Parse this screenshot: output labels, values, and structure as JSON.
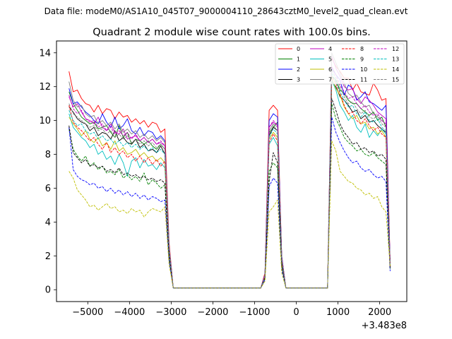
{
  "figure": {
    "suptitle": "Data file: modeM0/AS1A10_045T07_9000004110_28643cztM0_level2_quad_clean.evt"
  },
  "chart_data": {
    "type": "line",
    "title": "Quadrant 2 module wise count rates with 100.0s bins.",
    "xlabel": "",
    "ylabel": "",
    "x_offset_label": "+3.483e8",
    "xlim": [
      -5750,
      2650
    ],
    "ylim": [
      -0.7,
      14.7
    ],
    "xticks": [
      -5000,
      -4000,
      -3000,
      -2000,
      -1000,
      0,
      1000,
      2000
    ],
    "xtick_labels": [
      "−5000",
      "−4000",
      "−3000",
      "−2000",
      "−1000",
      "0",
      "1000",
      "2000"
    ],
    "yticks": [
      0,
      2,
      4,
      6,
      8,
      10,
      12,
      14
    ],
    "ytick_labels": [
      "0",
      "2",
      "4",
      "6",
      "8",
      "10",
      "12",
      "14"
    ],
    "legend": {
      "location": "upper right",
      "columns": 4
    },
    "segments": [
      {
        "x_start": -5450,
        "x_end": -2750,
        "step": 100
      },
      {
        "x_start": -850,
        "x_end": -150,
        "step": 100
      },
      {
        "x_start": 750,
        "x_end": 2250,
        "step": 100
      }
    ],
    "gaps_value": 0,
    "series": [
      {
        "name": "0",
        "color": "#ff0000",
        "dash": "solid",
        "segments": [
          [
            12.9,
            11.7,
            11.8,
            11.3,
            11.0,
            10.9,
            10.5,
            10.9,
            10.4,
            10.7,
            10.6,
            10.1,
            10.5,
            10.2,
            10.3,
            9.9,
            10.1,
            9.8,
            10.0,
            9.6,
            9.9,
            9.8,
            9.3,
            9.5,
            2.8,
            0.1,
            0.1,
            0.1
          ],
          [
            0.1,
            1.0,
            10.6,
            10.9,
            10.6,
            2.0,
            0.1,
            0.1
          ],
          [
            0.1,
            13.7,
            13.2,
            12.9,
            12.5,
            12.5,
            11.8,
            12.2,
            11.7,
            11.6,
            11.5,
            12.2,
            11.8,
            11.2,
            11.3,
            1.7
          ]
        ]
      },
      {
        "name": "1",
        "color": "#008000",
        "dash": "solid",
        "segments": [
          [
            11.7,
            11.0,
            10.6,
            10.2,
            10.0,
            9.8,
            9.9,
            9.5,
            9.6,
            9.7,
            9.3,
            9.0,
            9.7,
            9.0,
            9.3,
            8.6,
            8.9,
            8.8,
            8.6,
            8.8,
            8.5,
            8.3,
            8.6,
            8.3,
            2.5,
            0.1,
            0.1,
            0.1
          ],
          [
            0.1,
            0.9,
            9.3,
            9.6,
            9.9,
            1.9,
            0.1,
            0.1
          ],
          [
            0.1,
            12.6,
            12.4,
            11.8,
            11.6,
            11.2,
            11.0,
            11.0,
            10.7,
            10.5,
            10.3,
            10.5,
            10.0,
            10.2,
            9.6,
            1.5
          ]
        ]
      },
      {
        "name": "2",
        "color": "#0000ff",
        "dash": "solid",
        "segments": [
          [
            11.9,
            11.0,
            11.1,
            10.8,
            10.5,
            10.3,
            10.0,
            9.8,
            10.4,
            9.9,
            9.6,
            10.2,
            9.5,
            9.7,
            10.1,
            9.4,
            9.2,
            9.6,
            9.1,
            9.4,
            9.3,
            8.9,
            9.1,
            8.8,
            2.6,
            0.1,
            0.1,
            0.1
          ],
          [
            0.1,
            0.9,
            10.0,
            10.4,
            10.2,
            2.0,
            0.1,
            0.1
          ],
          [
            0.1,
            13.1,
            12.7,
            12.4,
            11.5,
            12.1,
            11.9,
            11.2,
            11.4,
            11.7,
            11.1,
            11.0,
            10.8,
            10.6,
            10.9,
            1.6
          ]
        ]
      },
      {
        "name": "3",
        "color": "#000000",
        "dash": "solid",
        "segments": [
          [
            10.8,
            10.5,
            10.1,
            9.9,
            9.8,
            9.4,
            9.6,
            9.1,
            9.3,
            9.2,
            8.9,
            9.4,
            8.8,
            9.0,
            8.7,
            8.6,
            8.9,
            8.4,
            8.6,
            8.2,
            8.3,
            8.1,
            8.5,
            8.0,
            2.4,
            0.1,
            0.1,
            0.1
          ],
          [
            0.1,
            0.9,
            9.1,
            9.6,
            9.4,
            1.8,
            0.1,
            0.1
          ],
          [
            0.1,
            12.3,
            12.0,
            11.4,
            11.2,
            10.9,
            10.5,
            10.6,
            10.1,
            10.3,
            9.9,
            10.0,
            9.7,
            9.5,
            9.3,
            1.5
          ]
        ]
      },
      {
        "name": "4",
        "color": "#bf00bf",
        "dash": "solid",
        "segments": [
          [
            11.4,
            10.8,
            11.0,
            10.5,
            10.1,
            10.0,
            9.8,
            10.2,
            9.6,
            9.4,
            9.8,
            9.3,
            9.2,
            9.5,
            8.9,
            9.0,
            9.1,
            8.8,
            9.0,
            8.7,
            8.9,
            8.6,
            8.7,
            8.5,
            2.5,
            0.1,
            0.1,
            0.1
          ],
          [
            0.1,
            0.9,
            9.6,
            9.9,
            9.7,
            1.9,
            0.1,
            0.1
          ],
          [
            0.1,
            13.8,
            13.1,
            12.6,
            12.0,
            11.8,
            11.9,
            11.3,
            11.0,
            11.4,
            11.2,
            10.9,
            10.5,
            10.3,
            10.1,
            1.6
          ]
        ]
      },
      {
        "name": "5",
        "color": "#00bfbf",
        "dash": "solid",
        "segments": [
          [
            10.4,
            9.6,
            9.3,
            9.0,
            8.8,
            8.4,
            8.6,
            8.0,
            8.2,
            7.7,
            7.9,
            7.4,
            8.0,
            7.5,
            6.7,
            7.6,
            7.8,
            7.2,
            7.7,
            7.3,
            7.4,
            7.1,
            7.5,
            7.2,
            2.2,
            0.1,
            0.1,
            0.1
          ],
          [
            0.1,
            0.9,
            8.6,
            9.0,
            8.5,
            1.7,
            0.1,
            0.1
          ],
          [
            0.1,
            12.4,
            11.8,
            10.9,
            10.5,
            10.0,
            10.3,
            9.6,
            9.3,
            9.8,
            9.0,
            9.4,
            9.1,
            9.5,
            9.2,
            1.4
          ]
        ]
      },
      {
        "name": "6",
        "color": "#bfbf00",
        "dash": "solid",
        "segments": [
          [
            10.2,
            9.8,
            9.5,
            9.1,
            9.4,
            8.9,
            8.7,
            9.0,
            8.5,
            8.7,
            8.3,
            8.8,
            8.2,
            8.4,
            8.0,
            8.1,
            8.3,
            7.9,
            8.1,
            7.8,
            7.9,
            7.6,
            7.8,
            7.5,
            2.3,
            0.1,
            0.1,
            0.1
          ],
          [
            0.1,
            0.8,
            8.9,
            9.3,
            9.0,
            1.7,
            0.1,
            0.1
          ],
          [
            0.1,
            12.5,
            11.9,
            11.5,
            10.8,
            10.4,
            10.1,
            10.3,
            9.8,
            9.9,
            9.5,
            9.6,
            9.2,
            9.4,
            9.0,
            1.4
          ]
        ]
      },
      {
        "name": "7",
        "color": "#808080",
        "dash": "solid",
        "segments": [
          [
            12.3,
            11.2,
            10.8,
            10.9,
            10.4,
            10.2,
            10.3,
            9.8,
            10.0,
            9.7,
            9.9,
            9.5,
            9.8,
            9.3,
            9.5,
            9.2,
            9.4,
            9.0,
            9.2,
            8.9,
            9.1,
            8.8,
            9.0,
            8.7,
            2.6,
            0.1,
            0.1,
            0.1
          ],
          [
            0.1,
            0.9,
            9.4,
            9.8,
            9.6,
            1.9,
            0.1,
            0.1
          ],
          [
            0.1,
            14.0,
            13.4,
            12.8,
            12.2,
            11.6,
            11.4,
            11.5,
            11.1,
            10.8,
            10.9,
            10.4,
            10.2,
            10.0,
            9.8,
            1.6
          ]
        ]
      },
      {
        "name": "8",
        "color": "#ff0000",
        "dash": "dashed",
        "segments": [
          [
            10.9,
            9.9,
            9.6,
            9.4,
            9.1,
            8.8,
            9.0,
            8.6,
            8.3,
            8.7,
            8.1,
            8.4,
            8.0,
            8.2,
            7.8,
            8.0,
            7.6,
            7.9,
            7.5,
            7.8,
            7.4,
            7.7,
            7.3,
            7.6,
            2.2,
            0.1,
            0.1,
            0.1
          ],
          [
            0.1,
            0.8,
            8.7,
            9.2,
            8.8,
            1.7,
            0.1,
            0.1
          ],
          [
            0.1,
            12.6,
            12.2,
            11.6,
            10.9,
            10.4,
            10.5,
            10.0,
            9.8,
            10.1,
            9.7,
            9.4,
            9.6,
            9.2,
            9.0,
            1.4
          ]
        ]
      },
      {
        "name": "9",
        "color": "#008000",
        "dash": "dashed",
        "segments": [
          [
            9.5,
            8.3,
            7.9,
            7.6,
            7.9,
            7.3,
            7.5,
            7.1,
            7.3,
            6.9,
            7.0,
            6.8,
            7.1,
            6.6,
            6.8,
            6.5,
            6.7,
            6.4,
            6.9,
            6.2,
            6.5,
            6.3,
            6.0,
            6.2,
            1.9,
            0.1,
            0.1,
            0.1
          ],
          [
            0.1,
            0.7,
            7.0,
            7.5,
            7.2,
            1.4,
            0.1,
            0.1
          ],
          [
            0.1,
            11.0,
            10.1,
            9.6,
            9.0,
            8.7,
            8.5,
            8.2,
            8.3,
            8.0,
            7.9,
            8.1,
            7.8,
            7.6,
            7.4,
            1.2
          ]
        ]
      },
      {
        "name": "10",
        "color": "#0000ff",
        "dash": "dashed",
        "segments": [
          [
            9.6,
            7.1,
            6.7,
            6.5,
            6.4,
            6.2,
            6.3,
            6.0,
            6.1,
            5.8,
            6.0,
            5.7,
            5.9,
            5.6,
            5.8,
            5.5,
            5.7,
            5.4,
            5.6,
            5.3,
            5.5,
            5.4,
            5.2,
            5.3,
            1.7,
            0.1,
            0.1,
            0.1
          ],
          [
            0.1,
            0.6,
            6.1,
            6.6,
            6.3,
            1.2,
            0.1,
            0.1
          ],
          [
            0.1,
            10.2,
            9.3,
            8.7,
            8.2,
            7.8,
            7.5,
            7.6,
            7.2,
            7.0,
            7.1,
            6.8,
            6.6,
            6.7,
            6.4,
            1.1
          ]
        ]
      },
      {
        "name": "11",
        "color": "#000000",
        "dash": "dashed",
        "segments": [
          [
            9.7,
            8.1,
            7.8,
            7.5,
            7.7,
            7.3,
            7.4,
            7.2,
            7.3,
            7.0,
            7.1,
            6.9,
            7.2,
            6.8,
            6.9,
            6.7,
            6.8,
            6.6,
            6.7,
            6.5,
            6.6,
            6.4,
            6.5,
            6.3,
            2.0,
            0.1,
            0.1,
            0.1
          ],
          [
            0.1,
            0.7,
            6.4,
            8.1,
            7.5,
            1.5,
            0.1,
            0.1
          ],
          [
            0.1,
            11.3,
            10.6,
            9.8,
            9.3,
            9.0,
            8.6,
            8.7,
            8.3,
            8.4,
            8.1,
            8.2,
            7.9,
            8.0,
            7.7,
            1.3
          ]
        ]
      },
      {
        "name": "12",
        "color": "#bf00bf",
        "dash": "dashed",
        "segments": [
          [
            11.5,
            10.7,
            10.4,
            10.6,
            10.1,
            9.9,
            10.0,
            9.6,
            9.8,
            9.4,
            9.6,
            9.2,
            9.4,
            9.1,
            9.3,
            8.9,
            9.2,
            8.8,
            9.0,
            8.7,
            8.9,
            8.6,
            8.8,
            8.5,
            2.5,
            0.1,
            0.1,
            0.1
          ],
          [
            0.1,
            0.9,
            9.6,
            10.0,
            9.7,
            1.9,
            0.1,
            0.1
          ],
          [
            0.1,
            13.2,
            12.7,
            12.1,
            11.7,
            11.3,
            11.4,
            11.0,
            10.7,
            10.9,
            10.5,
            10.3,
            10.4,
            10.0,
            9.8,
            1.6
          ]
        ]
      },
      {
        "name": "13",
        "color": "#00bfbf",
        "dash": "dashed",
        "segments": [
          [
            10.6,
            10.0,
            9.7,
            9.8,
            9.4,
            9.2,
            9.3,
            8.9,
            9.1,
            8.8,
            8.9,
            8.6,
            8.8,
            8.5,
            8.7,
            8.4,
            8.6,
            8.3,
            8.5,
            8.2,
            8.4,
            8.1,
            8.3,
            8.0,
            2.4,
            0.1,
            0.1,
            0.1
          ],
          [
            0.1,
            0.8,
            9.0,
            9.5,
            9.2,
            1.8,
            0.1,
            0.1
          ],
          [
            0.1,
            12.8,
            12.3,
            11.7,
            11.2,
            10.8,
            10.9,
            10.4,
            10.2,
            10.5,
            10.0,
            9.9,
            10.1,
            9.6,
            9.4,
            1.5
          ]
        ]
      },
      {
        "name": "14",
        "color": "#bfbf00",
        "dash": "dashed",
        "segments": [
          [
            7.0,
            6.6,
            5.9,
            5.6,
            5.3,
            4.9,
            5.0,
            4.7,
            4.9,
            5.1,
            4.8,
            4.9,
            4.6,
            4.7,
            4.5,
            4.8,
            4.6,
            4.7,
            4.3,
            4.6,
            4.8,
            4.7,
            4.6,
            4.9,
            1.5,
            0.1,
            0.1,
            0.1
          ],
          [
            0.1,
            0.5,
            4.6,
            4.9,
            5.3,
            1.0,
            0.1,
            0.1
          ],
          [
            0.1,
            8.8,
            8.2,
            7.0,
            6.7,
            6.4,
            6.3,
            6.0,
            5.9,
            5.6,
            5.7,
            5.4,
            5.5,
            4.9,
            4.6,
            1.4
          ]
        ]
      },
      {
        "name": "15",
        "color": "#808080",
        "dash": "dashed",
        "segments": [
          [
            11.0,
            10.4,
            10.2,
            10.0,
            9.8,
            9.6,
            9.7,
            9.4,
            9.5,
            9.2,
            9.4,
            9.0,
            9.2,
            8.9,
            9.1,
            8.7,
            8.9,
            8.6,
            8.8,
            8.5,
            8.7,
            8.4,
            8.6,
            8.3,
            2.5,
            0.1,
            0.1,
            0.1
          ],
          [
            0.1,
            0.8,
            9.2,
            9.7,
            9.4,
            1.8,
            0.1,
            0.1
          ],
          [
            0.1,
            13.0,
            12.5,
            12.0,
            11.4,
            11.0,
            11.1,
            10.7,
            10.4,
            10.6,
            10.2,
            10.1,
            10.3,
            9.8,
            9.6,
            1.5
          ]
        ]
      }
    ]
  }
}
